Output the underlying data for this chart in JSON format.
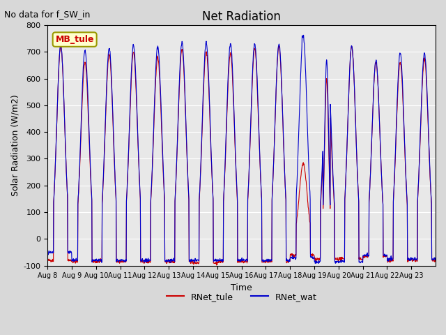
{
  "title": "Net Radiation",
  "subtitle": "No data for f_SW_in",
  "ylabel": "Solar Radiation (W/m2)",
  "xlabel": "Time",
  "ylim": [
    -100,
    800
  ],
  "legend_label1": "RNet_tule",
  "legend_label2": "RNet_wat",
  "legend_box_label": "MB_tule",
  "color_tule": "#cc0000",
  "color_wat": "#0000cc",
  "num_days": 16,
  "yticks": [
    -100,
    0,
    100,
    200,
    300,
    400,
    500,
    600,
    700,
    800
  ],
  "xtick_labels": [
    "Aug 8",
    "Aug 9",
    "Aug 10",
    "Aug 11",
    "Aug 12",
    "Aug 13",
    "Aug 14",
    "Aug 15",
    "Aug 16",
    "Aug 17",
    "Aug 18",
    "Aug 19",
    "Aug 20",
    "Aug 21",
    "Aug 22",
    "Aug 23"
  ]
}
